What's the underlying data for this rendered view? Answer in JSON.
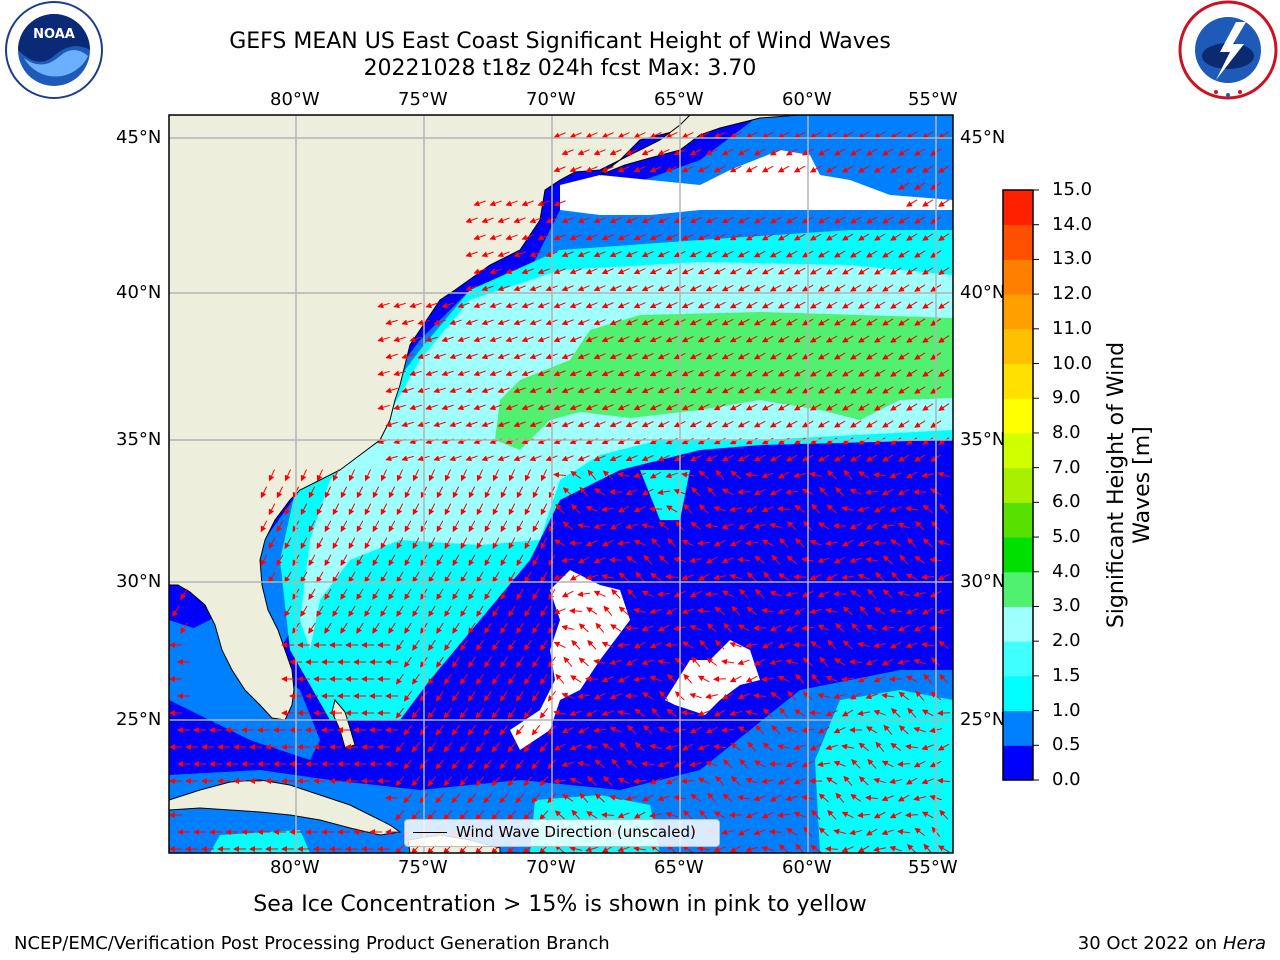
{
  "title": {
    "line1": "GEFS MEAN US East Coast Significant Height of Wind Waves",
    "line2": "20221028 t18z 024h fcst   Max: 3.70"
  },
  "map": {
    "lon_labels": [
      "80°W",
      "75°W",
      "70°W",
      "65°W",
      "60°W",
      "55°W"
    ],
    "lat_labels": [
      "45°N",
      "40°N",
      "35°N",
      "30°N",
      "25°N"
    ],
    "land_color": "#eeeedc",
    "grid_color": "#b4b4b4",
    "arrow_color": "#ff0000"
  },
  "legend": {
    "label": "Wind Wave Direction (unscaled)"
  },
  "colorbar": {
    "label": "Significant Height of Wind Waves [m]",
    "ticks": [
      "0.0",
      "0.5",
      "1.0",
      "1.5",
      "2.0",
      "3.0",
      "4.0",
      "5.0",
      "6.0",
      "7.0",
      "8.0",
      "9.0",
      "10.0",
      "11.0",
      "12.0",
      "13.0",
      "14.0",
      "15.0"
    ],
    "colors": [
      "#0000ff",
      "#0080ff",
      "#00ffff",
      "#40ffff",
      "#a0ffff",
      "#50f070",
      "#00e000",
      "#58e000",
      "#a8f000",
      "#d0ff00",
      "#ffff00",
      "#ffe000",
      "#ffc000",
      "#ffa000",
      "#ff8000",
      "#ff5000",
      "#ff2000"
    ]
  },
  "logos": {
    "left": "NOAA",
    "right": "NATIONAL WEATHER SERVICE"
  },
  "footer": {
    "sea_ice_note": "Sea Ice Concentration > 15% is shown in pink to yellow",
    "left": "NCEP/EMC/Verification Post Processing Product Generation Branch",
    "right_date": "30 Oct 2022 on",
    "right_machine": "Hera"
  }
}
